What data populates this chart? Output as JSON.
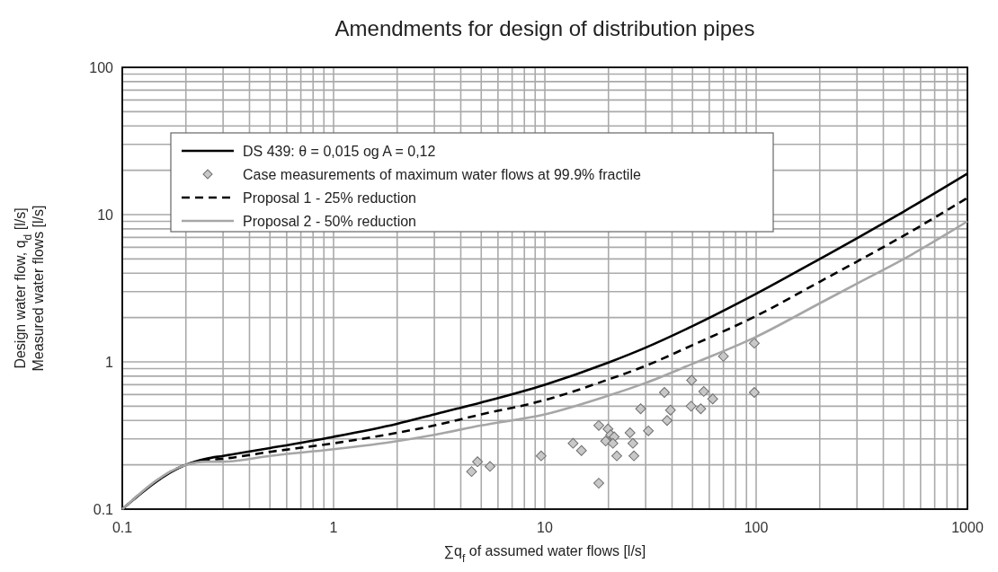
{
  "chart_data": {
    "type": "line",
    "title": "Amendments  for design of distribution pipes",
    "xlabel": "∑q$_{f}$ of assumed water flows [l/s]",
    "ylabel": "Design water flow, q$_{d}$ [l/s]\nMeasured water flows [l/s]",
    "log": "xy",
    "grid": true,
    "legend": "top left",
    "xlim": [
      0.1,
      1000
    ],
    "ylim": [
      0.1,
      100
    ],
    "xticks": [
      0.1,
      {
        "value": 0.2,
        "label": null
      },
      {
        "value": 0.3,
        "label": null
      },
      {
        "value": 0.4,
        "label": null
      },
      {
        "value": 0.5,
        "label": null
      },
      {
        "value": 0.6,
        "label": null
      },
      {
        "value": 0.7,
        "label": null
      },
      {
        "value": 0.8,
        "label": null
      },
      {
        "value": 0.9,
        "label": null
      },
      1,
      {
        "value": 2,
        "label": null
      },
      {
        "value": 3,
        "label": null
      },
      {
        "value": 4,
        "label": null
      },
      {
        "value": 5,
        "label": null
      },
      {
        "value": 6,
        "label": null
      },
      {
        "value": 7,
        "label": null
      },
      {
        "value": 8,
        "label": null
      },
      {
        "value": 9,
        "label": null
      },
      10,
      {
        "value": 20,
        "label": null
      },
      {
        "value": 30,
        "label": null
      },
      {
        "value": 40,
        "label": null
      },
      {
        "value": 50,
        "label": null
      },
      {
        "value": 60,
        "label": null
      },
      {
        "value": 70,
        "label": null
      },
      {
        "value": 80,
        "label": null
      },
      {
        "value": 90,
        "label": null
      },
      100,
      {
        "value": 200,
        "label": null
      },
      {
        "value": 300,
        "label": null
      },
      {
        "value": 400,
        "label": null
      },
      {
        "value": 500,
        "label": null
      },
      {
        "value": 600,
        "label": null
      },
      {
        "value": 700,
        "label": null
      },
      {
        "value": 800,
        "label": null
      },
      {
        "value": 900,
        "label": null
      },
      1000
    ],
    "yticks": [
      0.1,
      {
        "value": 0.2,
        "label": null
      },
      {
        "value": 0.3,
        "label": null
      },
      {
        "value": 0.4,
        "label": null
      },
      {
        "value": 0.5,
        "label": null
      },
      {
        "value": 0.6,
        "label": null
      },
      {
        "value": 0.7,
        "label": null
      },
      {
        "value": 0.8,
        "label": null
      },
      {
        "value": 0.9,
        "label": null
      },
      1,
      {
        "value": 2,
        "label": null
      },
      {
        "value": 3,
        "label": null
      },
      {
        "value": 4,
        "label": null
      },
      {
        "value": 5,
        "label": null
      },
      {
        "value": 6,
        "label": null
      },
      {
        "value": 7,
        "label": null
      },
      {
        "value": 8,
        "label": null
      },
      {
        "value": 9,
        "label": null
      },
      10,
      {
        "value": 20,
        "label": null
      },
      {
        "value": 30,
        "label": null
      },
      {
        "value": 40,
        "label": null
      },
      {
        "value": 50,
        "label": null
      },
      {
        "value": 60,
        "label": null
      },
      {
        "value": 70,
        "label": null
      },
      {
        "value": 80,
        "label": null
      },
      {
        "value": 90,
        "label": null
      },
      100
    ],
    "series": [
      {
        "name": "DS 439: θ = 0,015 og A = 0,12",
        "color": "#000000",
        "line_style": "solid",
        "marker": "none",
        "x": [
          0.1,
          0.2,
          0.25,
          0.3,
          0.5,
          1,
          2,
          3,
          5,
          10,
          20,
          30,
          50,
          100,
          200,
          300,
          500,
          1000
        ],
        "values": [
          0.1,
          0.2,
          0.22,
          0.23,
          0.26,
          0.31,
          0.38,
          0.44,
          0.53,
          0.7,
          0.99,
          1.25,
          1.75,
          2.9,
          5,
          6.9,
          10.5,
          19
        ]
      },
      {
        "name": "Case measurements of maximum water flows at 99.9% fractile",
        "type": "scatter",
        "color": "#c8c8c8",
        "marker": "diamond",
        "x": [
          4.5,
          4.8,
          5.5,
          9.6,
          13.6,
          14.9,
          18,
          18,
          19.9,
          20.5,
          19.4,
          21.3,
          21,
          21.9,
          25.3,
          26.1,
          26.4,
          28.4,
          30.9,
          36.8,
          37.9,
          39.3,
          49.5,
          49.2,
          56.5,
          54.7,
          62.3,
          70,
          98,
          98
        ],
        "values": [
          0.18,
          0.21,
          0.195,
          0.23,
          0.28,
          0.25,
          0.15,
          0.37,
          0.35,
          0.32,
          0.29,
          0.31,
          0.28,
          0.23,
          0.33,
          0.28,
          0.23,
          0.48,
          0.34,
          0.62,
          0.4,
          0.47,
          0.75,
          0.5,
          0.63,
          0.48,
          0.56,
          1.09,
          1.34,
          0.62
        ]
      },
      {
        "name": "Proposal 1 - 25% reduction",
        "color": "#000000",
        "line_style": "dashed",
        "marker": "none",
        "x": [
          0.1,
          0.2,
          0.25,
          0.3,
          0.5,
          1,
          2,
          3,
          5,
          10,
          20,
          30,
          50,
          100,
          200,
          300,
          500,
          1000
        ],
        "values": [
          0.1,
          0.2,
          0.215,
          0.22,
          0.245,
          0.28,
          0.33,
          0.37,
          0.44,
          0.55,
          0.76,
          0.94,
          1.3,
          2.05,
          3.5,
          4.8,
          7.2,
          13
        ]
      },
      {
        "name": "Proposal 2 - 50% reduction",
        "color": "#a6a6a6",
        "line_style": "solid",
        "marker": "none",
        "x": [
          0.1,
          0.2,
          0.25,
          0.3,
          0.5,
          1,
          2,
          3,
          5,
          10,
          20,
          30,
          50,
          100,
          200,
          300,
          500,
          1000
        ],
        "values": [
          0.1,
          0.2,
          0.21,
          0.21,
          0.23,
          0.255,
          0.29,
          0.32,
          0.37,
          0.44,
          0.59,
          0.72,
          0.97,
          1.48,
          2.5,
          3.4,
          5,
          9
        ]
      }
    ]
  }
}
